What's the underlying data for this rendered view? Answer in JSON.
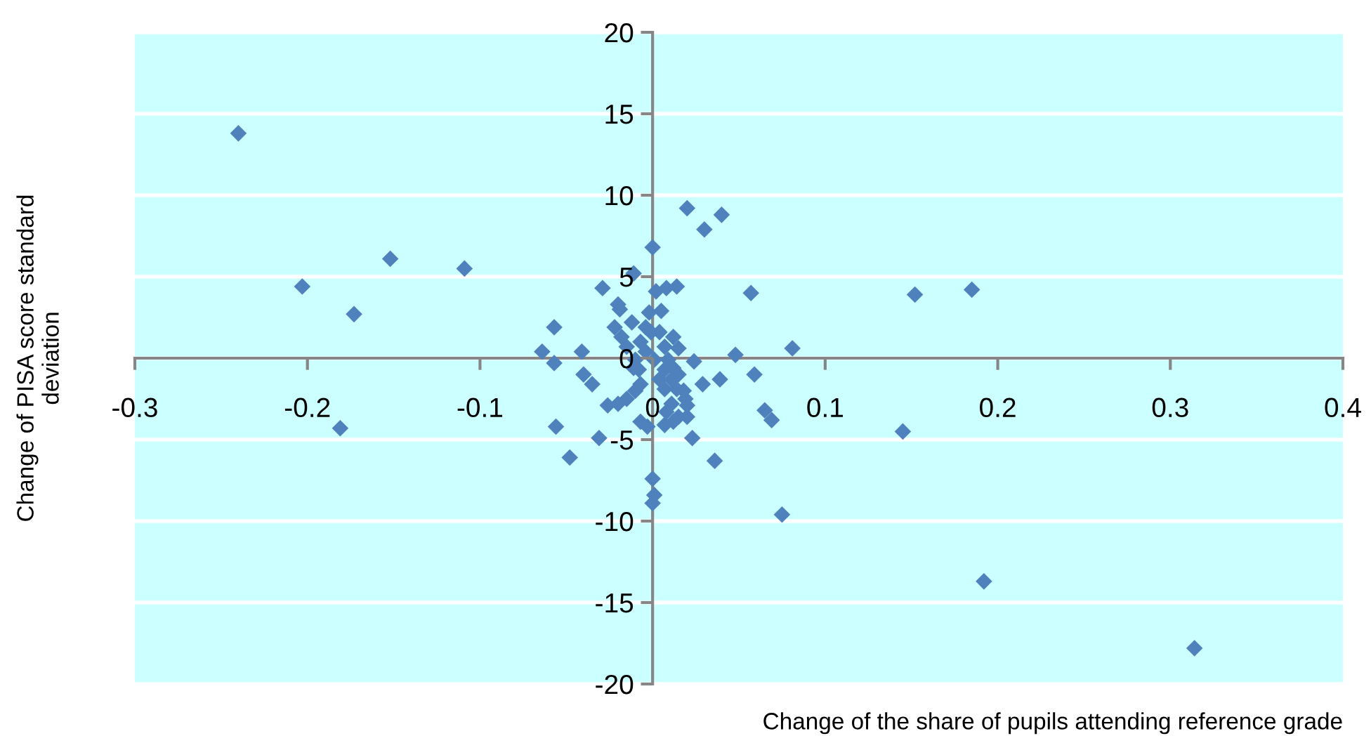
{
  "chart_data": {
    "type": "scatter",
    "xlabel": "Change of the share of pupils attending reference grade",
    "ylabel": "Change of PISA score standard\ndeviation",
    "marker": "diamond",
    "grid": "y",
    "xlim": [
      -0.3,
      0.4
    ],
    "xticks": [
      -0.3,
      -0.2,
      -0.1,
      0,
      0.1,
      0.2,
      0.3,
      0.4
    ],
    "ylim": [
      -20,
      20
    ],
    "yticks": [
      -20,
      -15,
      -10,
      -5,
      0,
      5,
      10,
      15,
      20
    ],
    "series": [
      {
        "color": "#4f81bd",
        "x": [
          -0.24,
          -0.203,
          -0.173,
          -0.152,
          -0.109,
          -0.181,
          -0.057,
          -0.064,
          -0.057,
          -0.041,
          -0.04,
          -0.035,
          -0.056,
          -0.048,
          -0.029,
          0.02,
          0.04,
          0.03,
          0.057,
          0.152,
          0.185,
          0.081,
          0.048,
          0.059,
          0.039,
          0.029,
          0.024,
          0.065,
          0.069,
          0.145,
          0.023,
          0.036,
          0.075,
          0.192,
          0.314,
          0.02,
          0.014,
          0.0,
          -0.011,
          0.002,
          0.008,
          -0.02,
          -0.019,
          -0.002,
          0.005,
          -0.022,
          -0.012,
          -0.004,
          0.004,
          0.012,
          0.015,
          -0.018,
          -0.015,
          -0.007,
          -0.001,
          0.007,
          -0.004,
          -0.01,
          0.001,
          0.009,
          -0.011,
          -0.008,
          0.007,
          0.012,
          0.004,
          0.011,
          0.015,
          0.007,
          0.014,
          0.018,
          0.019,
          0.02,
          0.011,
          0.008,
          0.015,
          0.007,
          0.012,
          -0.007,
          -0.01,
          -0.015,
          -0.02,
          -0.026,
          -0.007,
          -0.003,
          -0.031,
          0.0,
          0.001,
          0.0
        ],
        "values": [
          13.8,
          4.4,
          2.7,
          6.1,
          5.5,
          -4.3,
          1.9,
          0.4,
          -0.3,
          0.4,
          -1.0,
          -1.6,
          -4.2,
          -6.1,
          4.3,
          9.2,
          8.8,
          7.9,
          4.0,
          3.9,
          4.2,
          0.6,
          0.2,
          -1.0,
          -1.3,
          -1.6,
          -0.2,
          -3.2,
          -3.8,
          -4.5,
          -4.9,
          -6.3,
          -9.6,
          -13.7,
          -17.8,
          -3.6,
          4.4,
          6.8,
          5.2,
          4.1,
          4.3,
          3.3,
          3.0,
          2.8,
          2.9,
          1.9,
          2.2,
          1.9,
          1.6,
          1.3,
          0.6,
          1.3,
          0.7,
          1.0,
          1.6,
          0.7,
          0.4,
          -0.1,
          -0.1,
          -0.1,
          -0.6,
          -0.7,
          -0.7,
          -0.6,
          -1.3,
          -1.3,
          -1.0,
          -1.9,
          -1.9,
          -2.0,
          -2.5,
          -2.9,
          -2.8,
          -3.3,
          -3.6,
          -4.1,
          -3.9,
          -1.6,
          -2.0,
          -2.5,
          -2.8,
          -2.9,
          -3.9,
          -4.2,
          -4.9,
          -7.4,
          -8.4,
          -8.9
        ]
      }
    ]
  }
}
